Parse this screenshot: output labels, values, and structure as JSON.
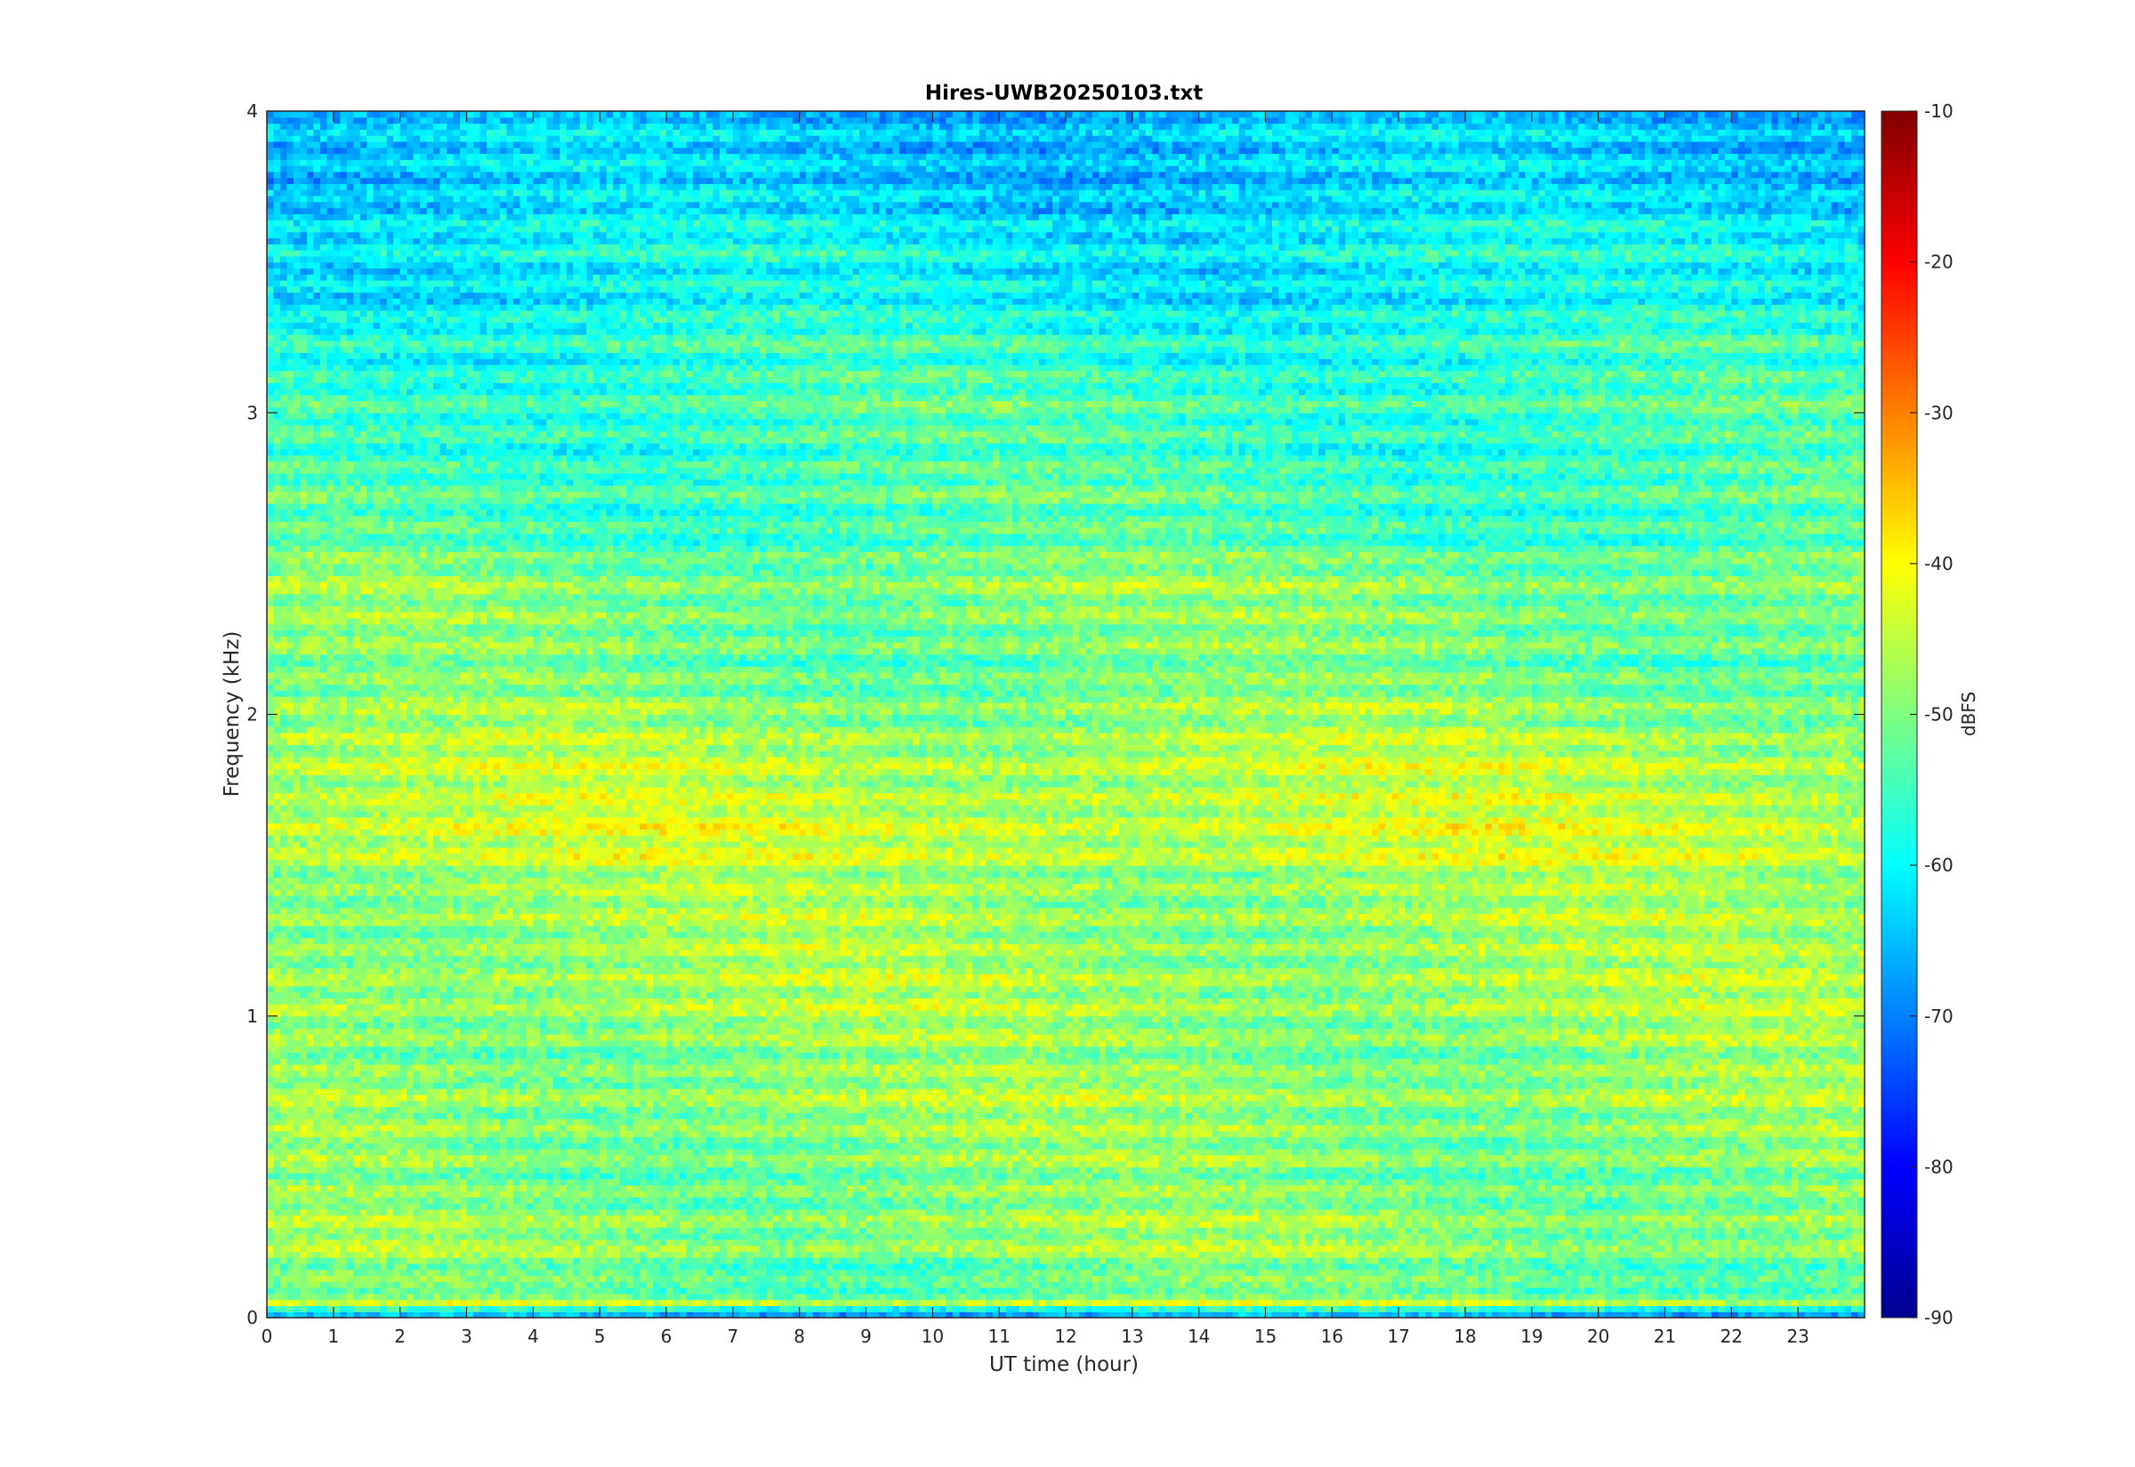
{
  "chart_data": {
    "type": "heatmap",
    "title": "Hires-UWB20250103.txt",
    "xlabel": "UT time (hour)",
    "ylabel": "Frequency (kHz)",
    "xlim": [
      0,
      24
    ],
    "ylim": [
      0,
      4
    ],
    "x_ticks": [
      "0",
      "1",
      "2",
      "3",
      "4",
      "5",
      "6",
      "7",
      "8",
      "9",
      "10",
      "11",
      "12",
      "13",
      "14",
      "15",
      "16",
      "17",
      "18",
      "19",
      "20",
      "21",
      "22",
      "23"
    ],
    "y_ticks": [
      "0",
      "1",
      "2",
      "3",
      "4"
    ],
    "colorbar": {
      "label": "dBFS",
      "colormap": "jet",
      "clim": [
        -90,
        -10
      ],
      "ticks": [
        "-90",
        "-80",
        "-70",
        "-60",
        "-50",
        "-40",
        "-30",
        "-20",
        "-10"
      ]
    },
    "grid": false,
    "band_centers_khz": [
      0.02,
      0.05,
      0.1,
      0.25,
      0.35,
      0.45,
      0.55,
      0.65,
      0.75,
      0.85,
      0.95,
      1.05,
      1.15,
      1.25,
      1.35,
      1.45,
      1.55,
      1.65,
      1.75,
      1.85,
      1.95,
      2.05,
      2.15,
      2.25,
      2.35,
      2.45,
      2.55,
      2.65,
      2.75,
      2.85,
      2.95,
      3.05,
      3.15,
      3.25,
      3.35,
      3.45,
      3.55,
      3.65,
      3.75,
      3.85,
      3.95
    ],
    "band_levels_dbfs": [
      -68,
      -44,
      -54,
      -48,
      -49,
      -51,
      -49,
      -49,
      -47,
      -50,
      -48,
      -47,
      -47,
      -48,
      -47,
      -48,
      -44,
      -44,
      -46,
      -45,
      -48,
      -49,
      -52,
      -50,
      -50,
      -49,
      -53,
      -55,
      -53,
      -56,
      -55,
      -54,
      -57,
      -56,
      -60,
      -61,
      -59,
      -62,
      -64,
      -64,
      -64
    ]
  }
}
